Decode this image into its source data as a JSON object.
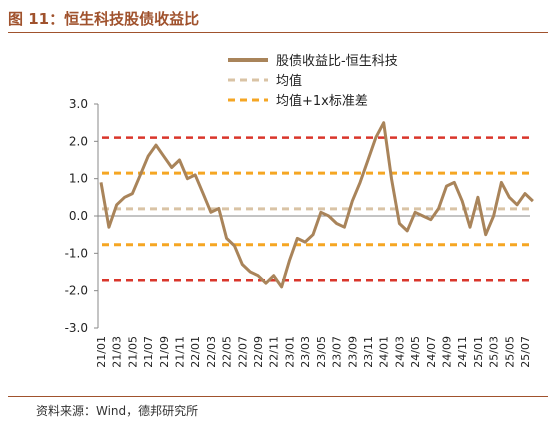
{
  "figure": {
    "title": "图 11：恒生科技股债收益比",
    "source": "资料来源：Wind，德邦研究所"
  },
  "chart_data": {
    "type": "line",
    "ylim": [
      -3.0,
      3.0
    ],
    "yticks": [
      "3.0",
      "2.0",
      "1.0",
      "0.0",
      "-1.0",
      "-2.0",
      "-3.0"
    ],
    "xticks": [
      "21/01",
      "21/03",
      "21/05",
      "21/07",
      "21/09",
      "21/11",
      "22/01",
      "22/03",
      "22/05",
      "22/07",
      "22/09",
      "22/11",
      "23/01",
      "23/03",
      "23/05",
      "23/07",
      "23/09",
      "23/11",
      "24/01",
      "24/03",
      "24/05",
      "24/07",
      "24/09",
      "24/11",
      "25/01",
      "25/03",
      "25/05",
      "25/07"
    ],
    "grid": false,
    "legend_position": "top-right",
    "series": [
      {
        "name": "股债收益比-恒生科技",
        "color": "#a9845a",
        "x": [
          "21/01",
          "21/02",
          "21/03",
          "21/04",
          "21/05",
          "21/06",
          "21/07",
          "21/08",
          "21/09",
          "21/10",
          "21/11",
          "21/12",
          "22/01",
          "22/02",
          "22/03",
          "22/04",
          "22/05",
          "22/06",
          "22/07",
          "22/08",
          "22/09",
          "22/10",
          "22/11",
          "22/12",
          "23/01",
          "23/02",
          "23/03",
          "23/04",
          "23/05",
          "23/06",
          "23/07",
          "23/08",
          "23/09",
          "23/10",
          "23/11",
          "23/12",
          "24/01",
          "24/02",
          "24/03",
          "24/04",
          "24/05",
          "24/06",
          "24/07",
          "24/08",
          "24/09",
          "24/10",
          "24/11",
          "24/12",
          "25/01",
          "25/02",
          "25/03",
          "25/04",
          "25/05",
          "25/06",
          "25/07",
          "25/08"
        ],
        "values": [
          0.9,
          -0.3,
          0.3,
          0.5,
          0.6,
          1.1,
          1.6,
          1.9,
          1.6,
          1.3,
          1.5,
          1.0,
          1.1,
          0.6,
          0.1,
          0.2,
          -0.6,
          -0.8,
          -1.3,
          -1.5,
          -1.6,
          -1.8,
          -1.6,
          -1.9,
          -1.2,
          -0.6,
          -0.7,
          -0.5,
          0.1,
          0.0,
          -0.2,
          -0.3,
          0.4,
          0.9,
          1.5,
          2.1,
          2.5,
          1.0,
          -0.2,
          -0.4,
          0.1,
          0.0,
          -0.1,
          0.2,
          0.8,
          0.9,
          0.4,
          -0.3,
          0.5,
          -0.5,
          0.0,
          0.9,
          0.5,
          0.3,
          0.6,
          0.4
        ]
      },
      {
        "name": "均值",
        "color": "#d9c3a5",
        "value": 0.19
      },
      {
        "name": "均值+1x标准差",
        "color": "#f5a623",
        "values": [
          1.15,
          -0.77
        ]
      },
      {
        "name": "",
        "color": "#d9362b",
        "values": [
          2.1,
          -1.72
        ]
      }
    ]
  }
}
